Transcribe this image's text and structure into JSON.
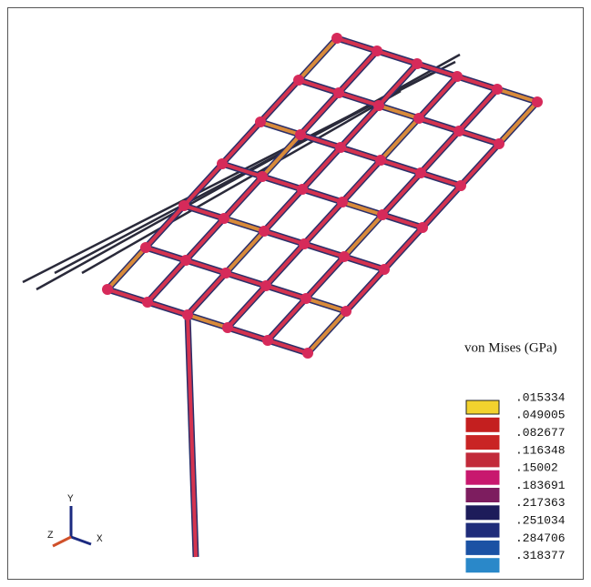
{
  "legend": {
    "title": "von Mises (GPa)",
    "labels": [
      ".015334",
      ".049005",
      ".082677",
      ".116348",
      ".15002",
      ".183691",
      ".217363",
      ".251034",
      ".284706",
      ".318377"
    ],
    "colors": [
      "#f2d22e",
      "#c41f1f",
      "#c92424",
      "#c22a3a",
      "#c8186e",
      "#7d1d5f",
      "#1d1c5a",
      "#1f2c7a",
      "#1b52a4",
      "#2a88c9"
    ]
  },
  "triad": {
    "y": "Y",
    "z": "Z",
    "x": "X"
  }
}
